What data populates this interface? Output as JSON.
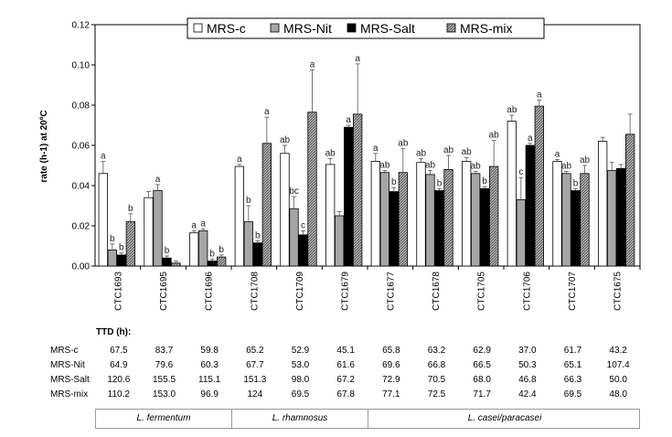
{
  "chart_data": {
    "type": "bar",
    "ylabel": "rate (h-1) at 20ºC",
    "ylim": [
      0,
      0.12
    ],
    "yticks": [
      "0.00",
      "0.02",
      "0.04",
      "0.06",
      "0.08",
      "0.10",
      "0.12"
    ],
    "legend_position": "top-center",
    "categories": [
      "CTC1693",
      "CTC1695",
      "CTC1696",
      "CTC1708",
      "CTC1709",
      "CTC1679",
      "CTC1677",
      "CTC1678",
      "CTC1705",
      "CTC1706",
      "CTC1707",
      "CTC1675"
    ],
    "series": [
      {
        "name": "MRS-c",
        "color": "#ffffff",
        "values": [
          0.046,
          0.034,
          0.0165,
          0.0495,
          0.056,
          0.0505,
          0.052,
          0.0515,
          0.052,
          0.072,
          0.052,
          0.062
        ],
        "errors": [
          0.006,
          0.003,
          0.001,
          0.001,
          0.004,
          0.003,
          0.004,
          0.002,
          0.002,
          0.003,
          0.001,
          0.002
        ],
        "labels": [
          "a",
          "",
          "a",
          "a",
          "ab",
          "ab",
          "a",
          "ab",
          "ab",
          "ab",
          "a",
          ""
        ]
      },
      {
        "name": "MRS-Nit",
        "color": "#a6a6a6",
        "values": [
          0.008,
          0.0375,
          0.0175,
          0.022,
          0.0285,
          0.025,
          0.0465,
          0.0455,
          0.046,
          0.033,
          0.046,
          0.0475
        ],
        "errors": [
          0.003,
          0.003,
          0.001,
          0.008,
          0.006,
          0.002,
          0.001,
          0.002,
          0.001,
          0.011,
          0.001,
          0.004
        ],
        "labels": [
          "b",
          "a",
          "a",
          "b",
          "bc",
          "",
          "ab",
          "ab",
          "ab",
          "c",
          "ab",
          ""
        ]
      },
      {
        "name": "MRS-Salt",
        "color": "#000000",
        "values": [
          0.0055,
          0.004,
          0.0025,
          0.0115,
          0.0155,
          0.069,
          0.037,
          0.0375,
          0.0385,
          0.06,
          0.0375,
          0.0485
        ],
        "errors": [
          0.001,
          0.001,
          0.001,
          0.001,
          0.002,
          0.001,
          0.002,
          0.001,
          0.001,
          0.001,
          0.001,
          0.002
        ],
        "labels": [
          "b",
          "b",
          "b",
          "b",
          "c",
          "a",
          "b",
          "b",
          "b",
          "a",
          "b",
          ""
        ]
      },
      {
        "name": "MRS-mix",
        "color": "#8c8c8c",
        "values": [
          0.022,
          0.0015,
          0.0045,
          0.061,
          0.0765,
          0.0755,
          0.0465,
          0.048,
          0.0495,
          0.0795,
          0.046,
          0.0655
        ],
        "errors": [
          0.004,
          0.001,
          0.001,
          0.013,
          0.021,
          0.025,
          0.012,
          0.007,
          0.013,
          0.003,
          0.004,
          0.01
        ],
        "labels": [
          "b",
          "",
          "b",
          "a",
          "a",
          "a",
          "ab",
          "ab",
          "ab",
          "a",
          "ab",
          ""
        ]
      }
    ]
  },
  "ttd": {
    "title": "TTD (h):",
    "rows": [
      {
        "label": "MRS-c",
        "values": [
          "67.5",
          "83.7",
          "59.8",
          "65.2",
          "52.9",
          "45.1",
          "65.8",
          "63.2",
          "62.9",
          "37.0",
          "61.7",
          "43.2"
        ]
      },
      {
        "label": "MRS-Nit",
        "values": [
          "64.9",
          "79.6",
          "60.3",
          "67.7",
          "53.0",
          "61.6",
          "69.6",
          "66.8",
          "66.5",
          "50.3",
          "65.1",
          "107.4"
        ]
      },
      {
        "label": "MRS-Salt",
        "values": [
          "120.6",
          "155.5",
          "115.1",
          "151.3",
          "98.0",
          "67.2",
          "72.9",
          "70.5",
          "68.0",
          "46.8",
          "66.3",
          "50.0"
        ]
      },
      {
        "label": "MRS-mix",
        "values": [
          "110.2",
          "153.0",
          "96.9",
          "124",
          "69.5",
          "67.8",
          "77.1",
          "72.5",
          "71.7",
          "42.4",
          "69.5",
          "48.0"
        ]
      }
    ]
  },
  "species": [
    {
      "name": "L. fermentum",
      "span": 3
    },
    {
      "name": "L. rhamnosus",
      "span": 3
    },
    {
      "name": "L. casei/paracasei",
      "span": 6
    }
  ]
}
